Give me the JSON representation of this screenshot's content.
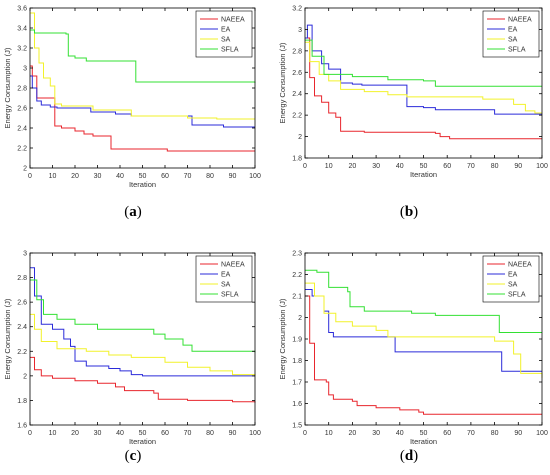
{
  "series_colors": {
    "NAEEA": "#e8262d",
    "EA": "#2b2bd9",
    "SA": "#f2f22a",
    "SFLA": "#33e033"
  },
  "chart_data": [
    {
      "panel_label": "a",
      "type": "line",
      "xlabel": "Iteration",
      "ylabel": "Energy Consumption (J)",
      "xlim": [
        0,
        100
      ],
      "ylim": [
        2.0,
        3.6
      ],
      "xticks": [
        0,
        10,
        20,
        30,
        40,
        50,
        60,
        70,
        80,
        90,
        100
      ],
      "yticks": [
        2.0,
        2.2,
        2.4,
        2.6,
        2.8,
        3.0,
        3.2,
        3.4,
        3.6
      ],
      "ytick_labels": [
        "2",
        "2.2",
        "2.4",
        "2.6",
        "2.8",
        "3",
        "3.2",
        "3.4",
        "3.6"
      ],
      "legend_position": "top-right",
      "series": [
        {
          "name": "NAEEA",
          "points": [
            [
              0,
              3.02
            ],
            [
              1,
              2.92
            ],
            [
              3,
              2.7
            ],
            [
              10,
              2.7
            ],
            [
              11,
              2.42
            ],
            [
              14,
              2.4
            ],
            [
              19,
              2.4
            ],
            [
              20,
              2.37
            ],
            [
              24,
              2.34
            ],
            [
              28,
              2.32
            ],
            [
              35,
              2.32
            ],
            [
              36,
              2.19
            ],
            [
              60,
              2.19
            ],
            [
              61,
              2.17
            ],
            [
              100,
              2.17
            ]
          ]
        },
        {
          "name": "EA",
          "points": [
            [
              0,
              2.92
            ],
            [
              1,
              2.8
            ],
            [
              3,
              2.67
            ],
            [
              5,
              2.63
            ],
            [
              9,
              2.61
            ],
            [
              12,
              2.6
            ],
            [
              26,
              2.6
            ],
            [
              27,
              2.56
            ],
            [
              38,
              2.54
            ],
            [
              45,
              2.52
            ],
            [
              71,
              2.52
            ],
            [
              72,
              2.43
            ],
            [
              85,
              2.43
            ],
            [
              86,
              2.41
            ],
            [
              100,
              2.41
            ]
          ]
        },
        {
          "name": "SA",
          "points": [
            [
              0,
              3.55
            ],
            [
              2,
              3.2
            ],
            [
              4,
              3.05
            ],
            [
              6,
              2.9
            ],
            [
              9,
              2.82
            ],
            [
              11,
              2.64
            ],
            [
              14,
              2.62
            ],
            [
              28,
              2.58
            ],
            [
              45,
              2.52
            ],
            [
              70,
              2.5
            ],
            [
              82,
              2.5
            ],
            [
              83,
              2.49
            ],
            [
              100,
              2.49
            ]
          ]
        },
        {
          "name": "SFLA",
          "points": [
            [
              0,
              3.38
            ],
            [
              2,
              3.35
            ],
            [
              16,
              3.34
            ],
            [
              17,
              3.12
            ],
            [
              20,
              3.1
            ],
            [
              25,
              3.07
            ],
            [
              45,
              3.07
            ],
            [
              47,
              2.86
            ],
            [
              60,
              2.86
            ],
            [
              100,
              2.85
            ]
          ]
        }
      ]
    },
    {
      "panel_label": "b",
      "type": "line",
      "xlabel": "Iteration",
      "ylabel": "Energy Consumption (J)",
      "xlim": [
        0,
        100
      ],
      "ylim": [
        1.8,
        3.2
      ],
      "xticks": [
        0,
        10,
        20,
        30,
        40,
        50,
        60,
        70,
        80,
        90,
        100
      ],
      "yticks": [
        1.8,
        2.0,
        2.2,
        2.4,
        2.6,
        2.8,
        3.0,
        3.2
      ],
      "ytick_labels": [
        "1.8",
        "2",
        "2.2",
        "2.4",
        "2.6",
        "2.8",
        "3",
        "3.2"
      ],
      "legend_position": "top-right",
      "series": [
        {
          "name": "NAEEA",
          "points": [
            [
              0,
              2.92
            ],
            [
              2,
              2.55
            ],
            [
              4,
              2.38
            ],
            [
              7,
              2.32
            ],
            [
              10,
              2.22
            ],
            [
              13,
              2.18
            ],
            [
              15,
              2.05
            ],
            [
              25,
              2.04
            ],
            [
              55,
              2.03
            ],
            [
              57,
              2.0
            ],
            [
              61,
              1.98
            ],
            [
              100,
              1.98
            ]
          ]
        },
        {
          "name": "EA",
          "points": [
            [
              0,
              2.92
            ],
            [
              1,
              3.04
            ],
            [
              3,
              2.8
            ],
            [
              7,
              2.68
            ],
            [
              10,
              2.63
            ],
            [
              15,
              2.5
            ],
            [
              20,
              2.49
            ],
            [
              24,
              2.48
            ],
            [
              42,
              2.48
            ],
            [
              43,
              2.28
            ],
            [
              50,
              2.27
            ],
            [
              55,
              2.25
            ],
            [
              78,
              2.25
            ],
            [
              80,
              2.21
            ],
            [
              100,
              2.21
            ]
          ]
        },
        {
          "name": "SA",
          "points": [
            [
              0,
              2.88
            ],
            [
              2,
              2.7
            ],
            [
              6,
              2.58
            ],
            [
              10,
              2.52
            ],
            [
              15,
              2.44
            ],
            [
              25,
              2.42
            ],
            [
              35,
              2.39
            ],
            [
              43,
              2.37
            ],
            [
              75,
              2.35
            ],
            [
              88,
              2.3
            ],
            [
              93,
              2.24
            ],
            [
              97,
              2.22
            ],
            [
              100,
              2.22
            ]
          ]
        },
        {
          "name": "SFLA",
          "points": [
            [
              0,
              2.9
            ],
            [
              3,
              2.75
            ],
            [
              8,
              2.58
            ],
            [
              20,
              2.56
            ],
            [
              35,
              2.53
            ],
            [
              50,
              2.52
            ],
            [
              55,
              2.47
            ],
            [
              100,
              2.47
            ]
          ]
        }
      ]
    },
    {
      "panel_label": "c",
      "type": "line",
      "xlabel": "Iteration",
      "ylabel": "Energy Consumption (J)",
      "xlim": [
        0,
        100
      ],
      "ylim": [
        1.6,
        3.0
      ],
      "xticks": [
        0,
        10,
        20,
        30,
        40,
        50,
        60,
        70,
        80,
        90,
        100
      ],
      "yticks": [
        1.6,
        1.8,
        2.0,
        2.2,
        2.4,
        2.6,
        2.8,
        3.0
      ],
      "ytick_labels": [
        "1.6",
        "1.8",
        "2",
        "2.2",
        "2.4",
        "2.6",
        "2.8",
        "3"
      ],
      "legend_position": "top-right",
      "series": [
        {
          "name": "NAEEA",
          "points": [
            [
              0,
              2.15
            ],
            [
              2,
              2.05
            ],
            [
              5,
              2.0
            ],
            [
              10,
              1.98
            ],
            [
              20,
              1.96
            ],
            [
              30,
              1.94
            ],
            [
              38,
              1.91
            ],
            [
              42,
              1.88
            ],
            [
              55,
              1.86
            ],
            [
              57,
              1.81
            ],
            [
              70,
              1.8
            ],
            [
              90,
              1.79
            ],
            [
              100,
              1.78
            ]
          ]
        },
        {
          "name": "EA",
          "points": [
            [
              0,
              2.88
            ],
            [
              2,
              2.65
            ],
            [
              5,
              2.42
            ],
            [
              10,
              2.38
            ],
            [
              15,
              2.3
            ],
            [
              18,
              2.24
            ],
            [
              20,
              2.12
            ],
            [
              25,
              2.08
            ],
            [
              35,
              2.06
            ],
            [
              40,
              2.04
            ],
            [
              45,
              2.01
            ],
            [
              50,
              2.0
            ],
            [
              100,
              2.0
            ]
          ]
        },
        {
          "name": "SA",
          "points": [
            [
              0,
              2.5
            ],
            [
              2,
              2.38
            ],
            [
              5,
              2.28
            ],
            [
              12,
              2.22
            ],
            [
              25,
              2.2
            ],
            [
              35,
              2.17
            ],
            [
              45,
              2.15
            ],
            [
              60,
              2.11
            ],
            [
              70,
              2.07
            ],
            [
              80,
              2.04
            ],
            [
              90,
              2.01
            ],
            [
              100,
              2.0
            ]
          ]
        },
        {
          "name": "SFLA",
          "points": [
            [
              0,
              2.78
            ],
            [
              3,
              2.62
            ],
            [
              6,
              2.5
            ],
            [
              12,
              2.46
            ],
            [
              20,
              2.42
            ],
            [
              30,
              2.38
            ],
            [
              40,
              2.38
            ],
            [
              55,
              2.34
            ],
            [
              60,
              2.3
            ],
            [
              68,
              2.25
            ],
            [
              72,
              2.2
            ],
            [
              90,
              2.2
            ],
            [
              100,
              2.19
            ]
          ]
        }
      ]
    },
    {
      "panel_label": "d",
      "type": "line",
      "xlabel": "Iteration",
      "ylabel": "Energy Consumption (J)",
      "xlim": [
        0,
        100
      ],
      "ylim": [
        1.5,
        2.3
      ],
      "xticks": [
        0,
        10,
        20,
        30,
        40,
        50,
        60,
        70,
        80,
        90,
        100
      ],
      "yticks": [
        1.5,
        1.6,
        1.7,
        1.8,
        1.9,
        2.0,
        2.1,
        2.2,
        2.3
      ],
      "ytick_labels": [
        "1.5",
        "1.6",
        "1.7",
        "1.8",
        "1.9",
        "2",
        "2.1",
        "2.2",
        "2.3"
      ],
      "legend_position": "top-right",
      "series": [
        {
          "name": "NAEEA",
          "points": [
            [
              0,
              2.1
            ],
            [
              2,
              1.88
            ],
            [
              4,
              1.71
            ],
            [
              9,
              1.7
            ],
            [
              10,
              1.64
            ],
            [
              12,
              1.62
            ],
            [
              20,
              1.61
            ],
            [
              22,
              1.59
            ],
            [
              30,
              1.58
            ],
            [
              40,
              1.57
            ],
            [
              48,
              1.56
            ],
            [
              50,
              1.55
            ],
            [
              100,
              1.55
            ]
          ]
        },
        {
          "name": "EA",
          "points": [
            [
              0,
              2.13
            ],
            [
              3,
              2.1
            ],
            [
              8,
              2.03
            ],
            [
              10,
              1.93
            ],
            [
              12,
              1.91
            ],
            [
              25,
              1.91
            ],
            [
              38,
              1.84
            ],
            [
              80,
              1.84
            ],
            [
              83,
              1.75
            ],
            [
              100,
              1.75
            ]
          ]
        },
        {
          "name": "SA",
          "points": [
            [
              0,
              2.16
            ],
            [
              4,
              2.1
            ],
            [
              8,
              2.02
            ],
            [
              13,
              1.98
            ],
            [
              20,
              1.96
            ],
            [
              30,
              1.94
            ],
            [
              35,
              1.91
            ],
            [
              60,
              1.91
            ],
            [
              80,
              1.89
            ],
            [
              88,
              1.83
            ],
            [
              91,
              1.74
            ],
            [
              100,
              1.72
            ]
          ]
        },
        {
          "name": "SFLA",
          "points": [
            [
              0,
              2.22
            ],
            [
              5,
              2.21
            ],
            [
              10,
              2.14
            ],
            [
              18,
              2.12
            ],
            [
              19,
              2.05
            ],
            [
              25,
              2.03
            ],
            [
              45,
              2.02
            ],
            [
              55,
              2.01
            ],
            [
              80,
              2.01
            ],
            [
              82,
              1.93
            ],
            [
              100,
              1.93
            ]
          ]
        }
      ]
    }
  ]
}
